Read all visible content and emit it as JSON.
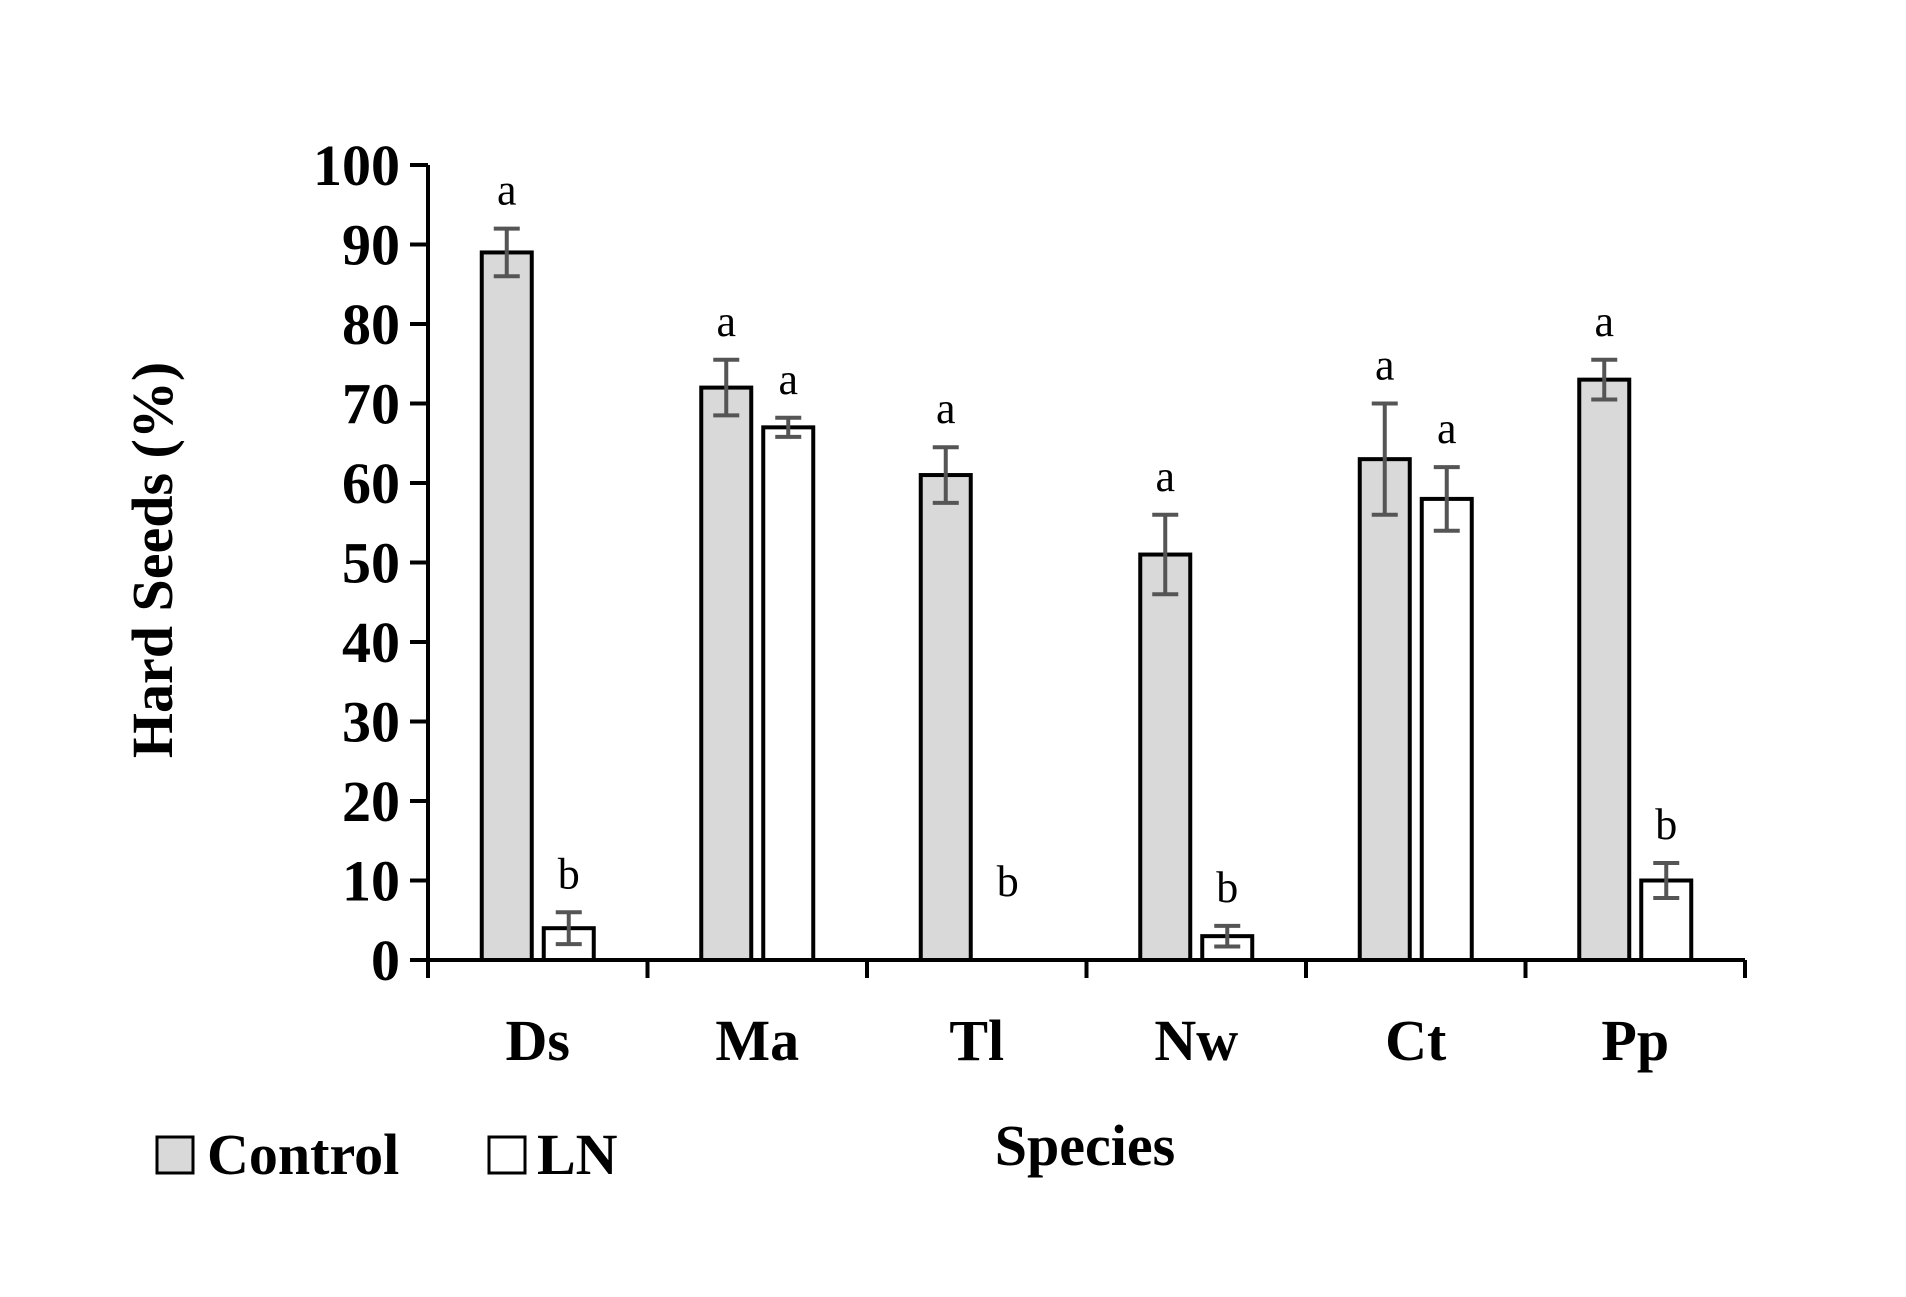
{
  "chart_data": {
    "type": "bar",
    "title": "",
    "xlabel": "Species",
    "ylabel": "Hard Seeds (%)",
    "ylim": [
      0,
      100
    ],
    "yticks": [
      "0",
      "10",
      "20",
      "30",
      "40",
      "50",
      "60",
      "70",
      "80",
      "90",
      "100"
    ],
    "categories": [
      "Ds",
      "Ma",
      "Tl",
      "Nw",
      "Ct",
      "Pp"
    ],
    "series": [
      {
        "name": "Control",
        "color": "#d9d9d9",
        "values": [
          89,
          72,
          61,
          51,
          63,
          73
        ],
        "errors": [
          3,
          3.5,
          3.5,
          5,
          7,
          2.5
        ],
        "letters": [
          "a",
          "a",
          "a",
          "a",
          "a",
          "a"
        ]
      },
      {
        "name": "LN",
        "color": "#ffffff",
        "values": [
          4,
          67,
          0,
          3,
          58,
          10
        ],
        "errors": [
          2,
          1.2,
          0,
          1.3,
          4,
          2.2
        ],
        "letters": [
          "b",
          "a",
          "b",
          "b",
          "a",
          "b"
        ]
      }
    ],
    "legend": {
      "position": "bottom-left",
      "entries": [
        "Control",
        "LN"
      ]
    },
    "grid": false
  }
}
